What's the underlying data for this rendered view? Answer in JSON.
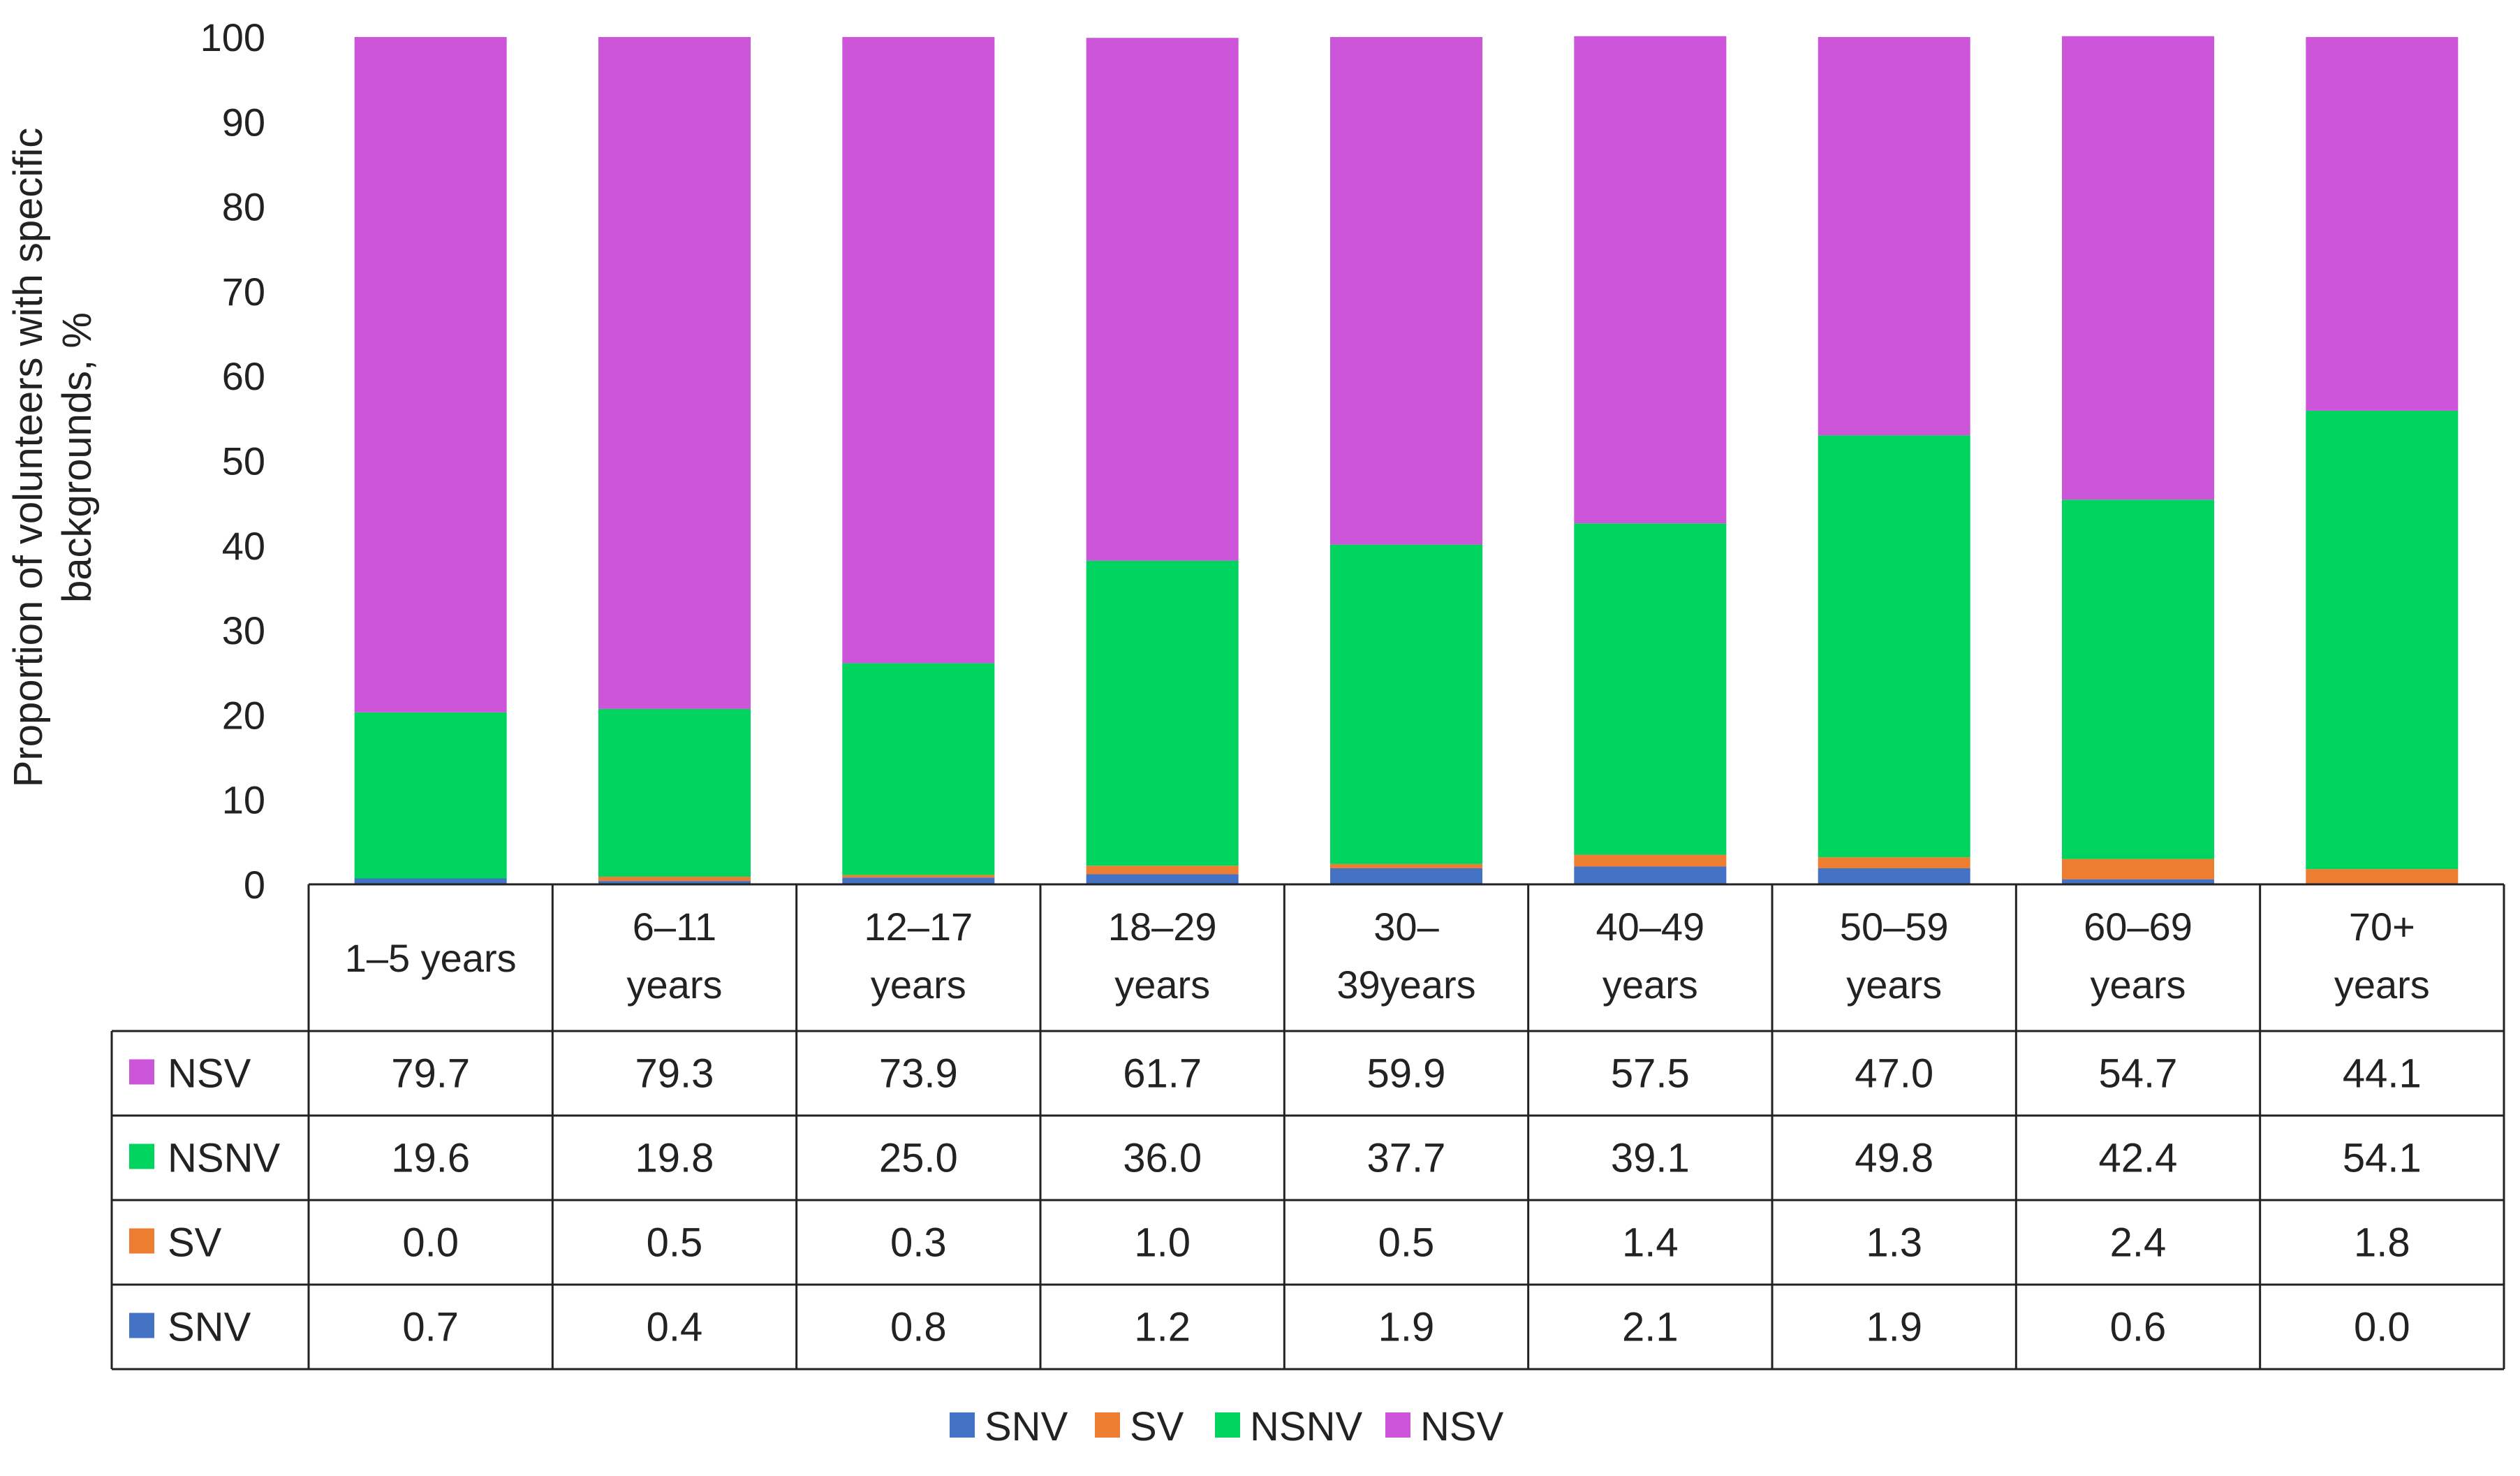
{
  "chart_data": {
    "type": "bar",
    "stacked": true,
    "title": "",
    "ylabel": "Proportion of volunteers with specific backgrounds, %",
    "ylabel_lines": [
      "Proportion of volunteers with specific",
      "backgrounds, %"
    ],
    "ylim": [
      0,
      100
    ],
    "yticks": [
      "0",
      "10",
      "20",
      "30",
      "40",
      "50",
      "60",
      "70",
      "80",
      "90",
      "100"
    ],
    "categories": [
      "1–5 years",
      "6–11 years",
      "12–17 years",
      "18–29 years",
      "30–39years",
      "40–49 years",
      "50–59 years",
      "60–69 years",
      "70+ years"
    ],
    "category_label_lines": [
      [
        "1–5 years"
      ],
      [
        "6–11",
        "years"
      ],
      [
        "12–17",
        "years"
      ],
      [
        "18–29",
        "years"
      ],
      [
        "30–",
        "39years"
      ],
      [
        "40–49",
        "years"
      ],
      [
        "50–59",
        "years"
      ],
      [
        "60–69",
        "years"
      ],
      [
        "70+",
        "years"
      ]
    ],
    "series": [
      {
        "name": "SNV",
        "color": "#4472c4",
        "values": [
          0.7,
          0.4,
          0.8,
          1.2,
          1.9,
          2.1,
          1.9,
          0.6,
          0.0
        ],
        "labels": [
          "0.7",
          "0.4",
          "0.8",
          "1.2",
          "1.9",
          "2.1",
          "1.9",
          "0.6",
          "0.0"
        ]
      },
      {
        "name": "SV",
        "color": "#ed7d31",
        "values": [
          0.0,
          0.5,
          0.3,
          1.0,
          0.5,
          1.4,
          1.3,
          2.4,
          1.8
        ],
        "labels": [
          "0.0",
          "0.5",
          "0.3",
          "1.0",
          "0.5",
          "1.4",
          "1.3",
          "2.4",
          "1.8"
        ]
      },
      {
        "name": "NSNV",
        "color": "#00d45f",
        "values": [
          19.6,
          19.8,
          25.0,
          36.0,
          37.7,
          39.1,
          49.8,
          42.4,
          54.1
        ],
        "labels": [
          "19.6",
          "19.8",
          "25.0",
          "36.0",
          "37.7",
          "39.1",
          "49.8",
          "42.4",
          "54.1"
        ]
      },
      {
        "name": "NSV",
        "color": "#cc55d9",
        "values": [
          79.7,
          79.3,
          73.9,
          61.7,
          59.9,
          57.5,
          47.0,
          54.7,
          44.1
        ],
        "labels": [
          "79.7",
          "79.3",
          "73.9",
          "61.7",
          "59.9",
          "57.5",
          "47.0",
          "54.7",
          "44.1"
        ]
      }
    ],
    "table_row_order": [
      "NSV",
      "NSNV",
      "SV",
      "SNV"
    ],
    "legend_position": "bottom"
  }
}
